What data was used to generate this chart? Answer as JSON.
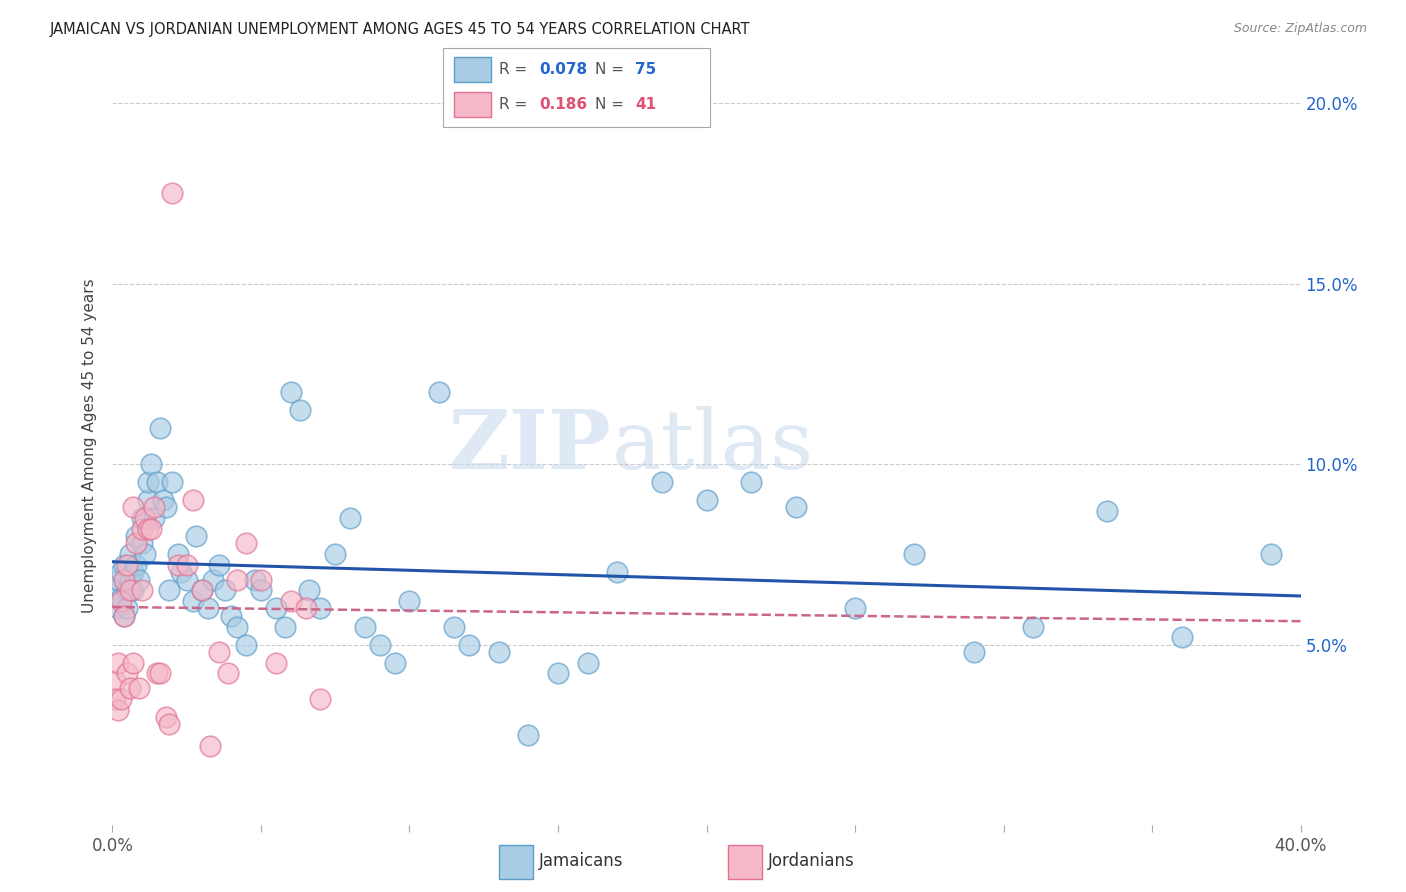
{
  "title": "JAMAICAN VS JORDANIAN UNEMPLOYMENT AMONG AGES 45 TO 54 YEARS CORRELATION CHART",
  "source": "Source: ZipAtlas.com",
  "ylabel": "Unemployment Among Ages 45 to 54 years",
  "xlim": [
    0.0,
    0.4
  ],
  "ylim": [
    0.0,
    0.21
  ],
  "xticks": [
    0.0,
    0.05,
    0.1,
    0.15,
    0.2,
    0.25,
    0.3,
    0.35,
    0.4
  ],
  "yticks": [
    0.05,
    0.1,
    0.15,
    0.2
  ],
  "ytick_labels": [
    "5.0%",
    "10.0%",
    "15.0%",
    "20.0%"
  ],
  "jamaican_fill_color": "#a8cce4",
  "jamaican_edge_color": "#5b9dc9",
  "jordanian_fill_color": "#f4b8c8",
  "jordanian_edge_color": "#e07090",
  "jamaican_line_color": "#2255aa",
  "jordanian_line_color": "#cc6688",
  "legend_R1": "0.078",
  "legend_N1": "75",
  "legend_R2": "0.186",
  "legend_N2": "41",
  "watermark": "ZIPatlas",
  "jamaicans_x": [
    0.001,
    0.002,
    0.002,
    0.003,
    0.003,
    0.004,
    0.004,
    0.005,
    0.005,
    0.006,
    0.006,
    0.007,
    0.007,
    0.008,
    0.008,
    0.009,
    0.01,
    0.01,
    0.011,
    0.012,
    0.012,
    0.013,
    0.014,
    0.015,
    0.016,
    0.017,
    0.018,
    0.019,
    0.02,
    0.022,
    0.023,
    0.025,
    0.027,
    0.028,
    0.03,
    0.032,
    0.034,
    0.036,
    0.038,
    0.04,
    0.042,
    0.045,
    0.048,
    0.05,
    0.055,
    0.058,
    0.06,
    0.063,
    0.066,
    0.07,
    0.075,
    0.08,
    0.085,
    0.09,
    0.095,
    0.1,
    0.11,
    0.115,
    0.12,
    0.13,
    0.14,
    0.15,
    0.16,
    0.17,
    0.185,
    0.2,
    0.215,
    0.23,
    0.25,
    0.27,
    0.29,
    0.31,
    0.335,
    0.36,
    0.39
  ],
  "jamaicans_y": [
    0.065,
    0.06,
    0.068,
    0.07,
    0.063,
    0.058,
    0.072,
    0.065,
    0.06,
    0.068,
    0.075,
    0.07,
    0.065,
    0.08,
    0.072,
    0.068,
    0.085,
    0.078,
    0.075,
    0.09,
    0.095,
    0.1,
    0.085,
    0.095,
    0.11,
    0.09,
    0.088,
    0.065,
    0.095,
    0.075,
    0.07,
    0.068,
    0.062,
    0.08,
    0.065,
    0.06,
    0.068,
    0.072,
    0.065,
    0.058,
    0.055,
    0.05,
    0.068,
    0.065,
    0.06,
    0.055,
    0.12,
    0.115,
    0.065,
    0.06,
    0.075,
    0.085,
    0.055,
    0.05,
    0.045,
    0.062,
    0.12,
    0.055,
    0.05,
    0.048,
    0.025,
    0.042,
    0.045,
    0.07,
    0.095,
    0.09,
    0.095,
    0.088,
    0.06,
    0.075,
    0.048,
    0.055,
    0.087,
    0.052,
    0.075
  ],
  "jordanians_x": [
    0.001,
    0.001,
    0.002,
    0.002,
    0.003,
    0.003,
    0.004,
    0.004,
    0.005,
    0.005,
    0.006,
    0.006,
    0.007,
    0.007,
    0.008,
    0.009,
    0.01,
    0.01,
    0.011,
    0.012,
    0.013,
    0.014,
    0.015,
    0.016,
    0.018,
    0.019,
    0.02,
    0.022,
    0.025,
    0.027,
    0.03,
    0.033,
    0.036,
    0.039,
    0.042,
    0.045,
    0.05,
    0.055,
    0.06,
    0.065,
    0.07
  ],
  "jordanians_y": [
    0.04,
    0.035,
    0.045,
    0.032,
    0.062,
    0.035,
    0.058,
    0.068,
    0.072,
    0.042,
    0.038,
    0.065,
    0.088,
    0.045,
    0.078,
    0.038,
    0.065,
    0.082,
    0.085,
    0.082,
    0.082,
    0.088,
    0.042,
    0.042,
    0.03,
    0.028,
    0.175,
    0.072,
    0.072,
    0.09,
    0.065,
    0.022,
    0.048,
    0.042,
    0.068,
    0.078,
    0.068,
    0.045,
    0.062,
    0.06,
    0.035
  ]
}
